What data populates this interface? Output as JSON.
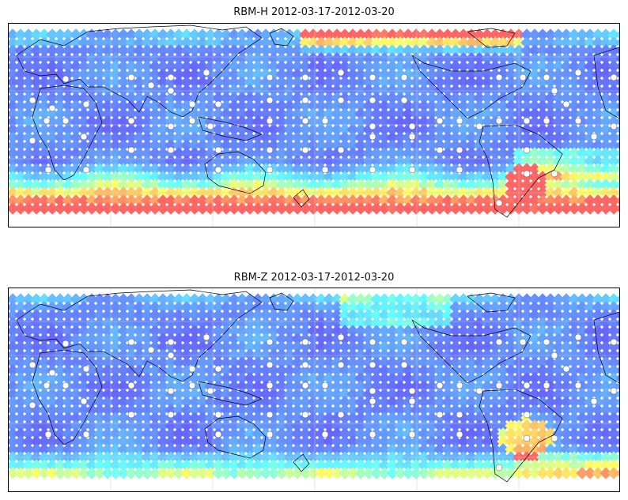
{
  "panels": [
    {
      "title": "RBM-H 2012-03-17-2012-03-20",
      "variant": "h"
    },
    {
      "title": "RBM-Z 2012-03-17-2012-03-20",
      "variant": "z"
    }
  ],
  "colormap": [
    "#6666ff",
    "#66aaff",
    "#66ffff",
    "#ffff66",
    "#ff6666"
  ],
  "land_outline_color": "#000000",
  "gridline_color": "#c8c8c8",
  "station_marker_color": "#ffffff"
}
